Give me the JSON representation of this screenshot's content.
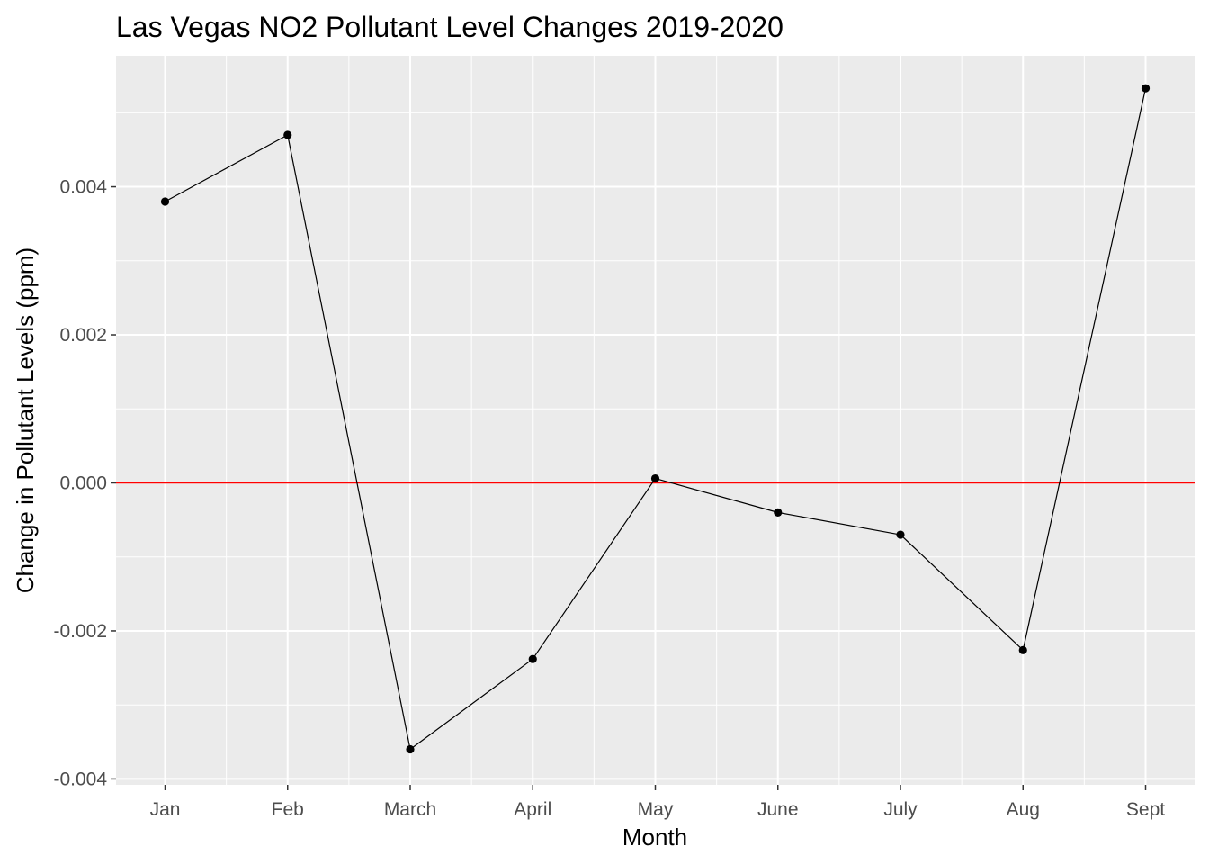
{
  "chart_data": {
    "type": "line",
    "title": "Las Vegas NO2 Pollutant Level Changes 2019-2020",
    "xlabel": "Month",
    "ylabel": "Change in Pollutant Levels (ppm)",
    "categories": [
      "Jan",
      "Feb",
      "March",
      "April",
      "May",
      "June",
      "July",
      "Aug",
      "Sept"
    ],
    "values": [
      0.0038,
      0.0047,
      -0.0036,
      -0.00238,
      6e-05,
      -0.0004,
      -0.0007,
      -0.00226,
      0.00533
    ],
    "ylim": [
      -0.00408,
      0.00577
    ],
    "yticks": [
      -0.004,
      -0.002,
      0.0,
      0.002,
      0.004
    ],
    "ytick_labels": [
      "-0.004",
      "-0.002",
      "0.000",
      "0.002",
      "0.004"
    ],
    "reference_line": {
      "y": 0,
      "color": "#ff0000"
    },
    "grid": true,
    "legend": "none",
    "colors": {
      "panel_background": "#ebebeb",
      "gridline": "#ffffff",
      "series": "#000000",
      "tick_text": "#4d4d4d",
      "tick_mark": "#333333"
    }
  }
}
